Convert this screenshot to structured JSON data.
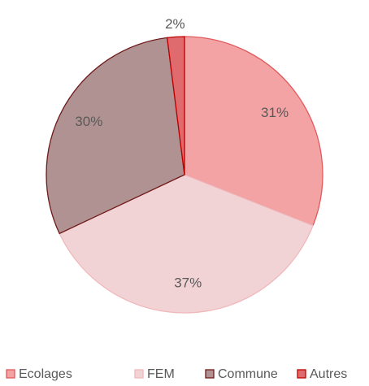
{
  "chart_data": {
    "type": "pie",
    "categories": [
      "Ecolages",
      "FEM",
      "Commune",
      "Autres"
    ],
    "values": [
      31,
      37,
      30,
      2
    ],
    "value_labels": [
      "31%",
      "37%",
      "30%",
      "2%"
    ],
    "colors": [
      "#f4a3a5",
      "#f2d3d5",
      "#b09292",
      "#e06b6e"
    ],
    "stroke_colors": [
      "#e2595c",
      "#f0b8bb",
      "#6e1a1a",
      "#c00000"
    ],
    "legend": "bottom"
  }
}
